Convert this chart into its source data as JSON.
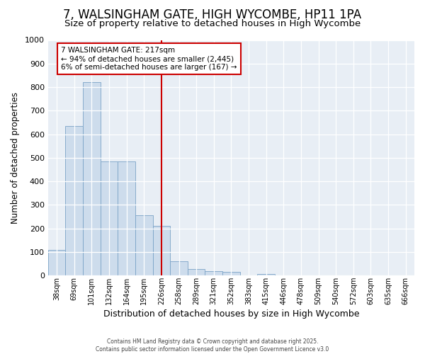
{
  "title": "7, WALSINGHAM GATE, HIGH WYCOMBE, HP11 1PA",
  "subtitle": "Size of property relative to detached houses in High Wycombe",
  "xlabel": "Distribution of detached houses by size in High Wycombe",
  "ylabel": "Number of detached properties",
  "bar_labels": [
    "38sqm",
    "69sqm",
    "101sqm",
    "132sqm",
    "164sqm",
    "195sqm",
    "226sqm",
    "258sqm",
    "289sqm",
    "321sqm",
    "352sqm",
    "383sqm",
    "415sqm",
    "446sqm",
    "478sqm",
    "509sqm",
    "540sqm",
    "572sqm",
    "603sqm",
    "635sqm",
    "666sqm"
  ],
  "bar_values": [
    110,
    635,
    820,
    483,
    483,
    255,
    210,
    62,
    28,
    20,
    15,
    0,
    8,
    0,
    0,
    0,
    0,
    0,
    0,
    0,
    0
  ],
  "bar_color": "#cddcec",
  "bar_edge_color": "#7ba3c7",
  "vline_x": 6.0,
  "vline_color": "#cc0000",
  "annotation_text": "7 WALSINGHAM GATE: 217sqm\n← 94% of detached houses are smaller (2,445)\n6% of semi-detached houses are larger (167) →",
  "annotation_box_color": "#ffffff",
  "annotation_box_edge_color": "#cc0000",
  "ylim": [
    0,
    1000
  ],
  "yticks": [
    0,
    100,
    200,
    300,
    400,
    500,
    600,
    700,
    800,
    900,
    1000
  ],
  "background_color": "#e8eef5",
  "footer_text": "Contains HM Land Registry data © Crown copyright and database right 2025.\nContains public sector information licensed under the Open Government Licence v3.0",
  "title_fontsize": 12,
  "subtitle_fontsize": 9.5,
  "ylabel_fontsize": 8.5,
  "xlabel_fontsize": 9
}
